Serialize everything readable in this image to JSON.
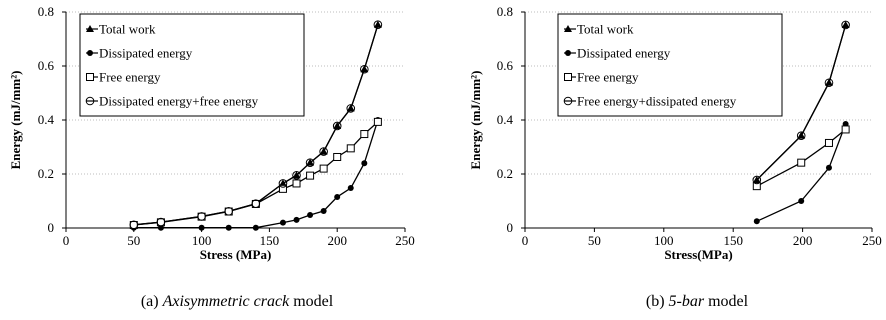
{
  "chart_data": [
    {
      "type": "line",
      "caption_prefix": "(a) ",
      "caption_italic": "Axisymmetric crack",
      "caption_suffix": " model",
      "xlabel": "Stress (MPa)",
      "ylabel": "Energy (mJ/mm²)",
      "xlim": [
        0,
        250
      ],
      "ylim": [
        0,
        0.8
      ],
      "xticks": [
        "0",
        "50",
        "100",
        "150",
        "200",
        "250"
      ],
      "yticks": [
        "0",
        "0.2",
        "0.4",
        "0.6",
        "0.8"
      ],
      "legend_position": "top-left",
      "series": [
        {
          "name": "Total work",
          "marker": "triangle",
          "x": [
            50,
            70,
            100,
            120,
            140,
            160,
            170,
            180,
            190,
            200,
            210,
            220,
            230
          ],
          "y": [
            0.012,
            0.022,
            0.043,
            0.062,
            0.09,
            0.165,
            0.195,
            0.242,
            0.283,
            0.378,
            0.443,
            0.588,
            0.753
          ]
        },
        {
          "name": "Dissipated energy",
          "marker": "filled-circle",
          "x": [
            50,
            70,
            100,
            120,
            140,
            160,
            170,
            180,
            190,
            200,
            210,
            220,
            230
          ],
          "y": [
            0.001,
            0.001,
            0.001,
            0.001,
            0.001,
            0.02,
            0.03,
            0.048,
            0.063,
            0.115,
            0.148,
            0.24,
            0.4
          ]
        },
        {
          "name": "Free energy",
          "marker": "open-square",
          "x": [
            50,
            70,
            100,
            120,
            140,
            160,
            170,
            180,
            190,
            200,
            210,
            220,
            230
          ],
          "y": [
            0.011,
            0.021,
            0.042,
            0.061,
            0.089,
            0.145,
            0.165,
            0.194,
            0.22,
            0.263,
            0.295,
            0.348,
            0.393
          ]
        },
        {
          "name": "Dissipated energy+free energy",
          "marker": "open-circle",
          "x": [
            50,
            70,
            100,
            120,
            140,
            160,
            170,
            180,
            190,
            200,
            210,
            220,
            230
          ],
          "y": [
            0.012,
            0.022,
            0.043,
            0.062,
            0.09,
            0.165,
            0.195,
            0.242,
            0.283,
            0.378,
            0.443,
            0.588,
            0.753
          ]
        }
      ]
    },
    {
      "type": "line",
      "caption_prefix": "(b) ",
      "caption_italic": "5-bar",
      "caption_suffix": " model",
      "xlabel": "Stress(MPa)",
      "ylabel": "Energy (mJ/mm²)",
      "xlim": [
        0,
        250
      ],
      "ylim": [
        0,
        0.8
      ],
      "xticks": [
        "0",
        "50",
        "100",
        "150",
        "200",
        "250"
      ],
      "yticks": [
        "0",
        "0.2",
        "0.4",
        "0.6",
        "0.8"
      ],
      "legend_position": "top-left",
      "series": [
        {
          "name": "Total work",
          "marker": "triangle",
          "x": [
            167,
            199,
            219,
            231
          ],
          "y": [
            0.178,
            0.342,
            0.538,
            0.752
          ]
        },
        {
          "name": "Dissipated energy",
          "marker": "filled-circle",
          "x": [
            167,
            199,
            219,
            231
          ],
          "y": [
            0.025,
            0.1,
            0.223,
            0.385
          ]
        },
        {
          "name": "Free energy",
          "marker": "open-square",
          "x": [
            167,
            199,
            219,
            231
          ],
          "y": [
            0.155,
            0.242,
            0.315,
            0.365
          ]
        },
        {
          "name": "Free energy+dissipated energy",
          "marker": "open-circle",
          "x": [
            167,
            199,
            219,
            231
          ],
          "y": [
            0.178,
            0.342,
            0.538,
            0.752
          ]
        }
      ]
    }
  ]
}
